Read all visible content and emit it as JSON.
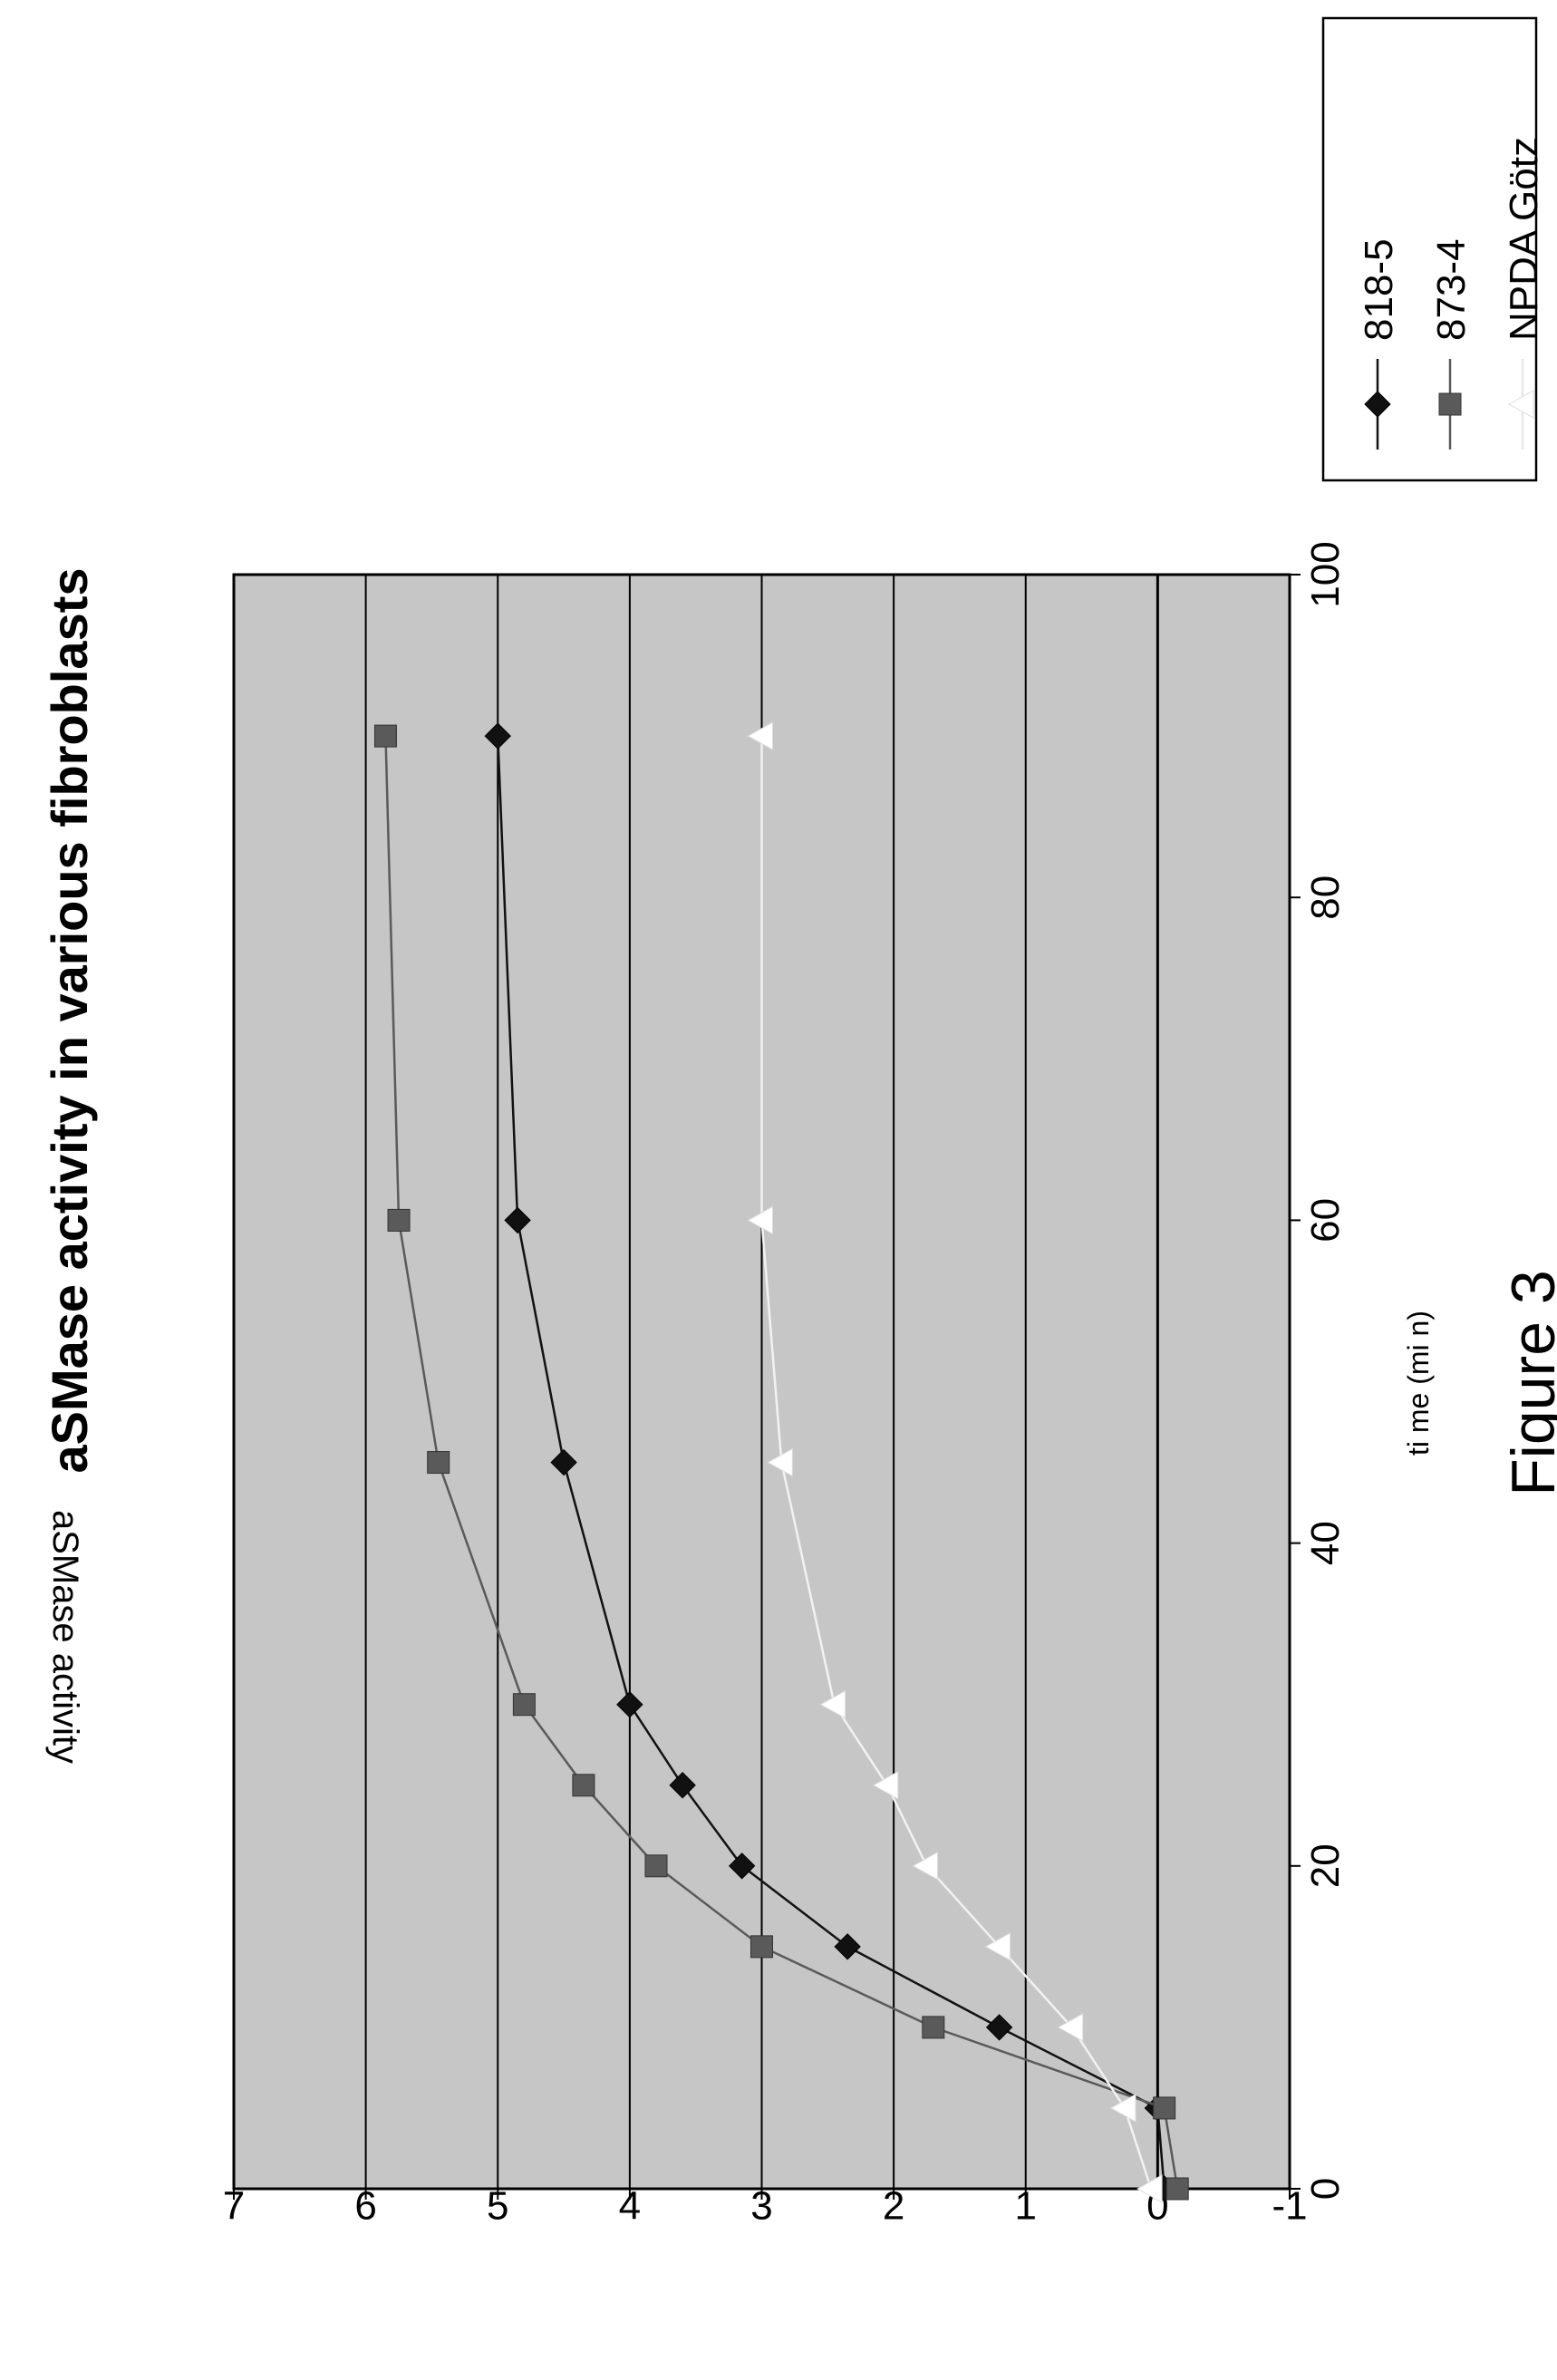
{
  "chart_data": {
    "type": "line",
    "title": "aSMase activity in various fibroblasts",
    "xlabel": "ti me (mi n)",
    "ylabel": "aSMase activity",
    "xlim": [
      0,
      100
    ],
    "ylim": [
      -1,
      7
    ],
    "x_ticks": [
      "0",
      "20",
      "40",
      "60",
      "80",
      "100"
    ],
    "y_ticks": [
      "-1",
      "0",
      "1",
      "2",
      "3",
      "4",
      "5",
      "6",
      "7"
    ],
    "grid": true,
    "legend_position": "right",
    "orientation": "rotated 90 degrees counter-clockwise",
    "series": [
      {
        "name": "818-5",
        "marker": "diamond",
        "color": "#111111",
        "x": [
          0,
          5,
          10,
          15,
          20,
          25,
          30,
          45,
          60,
          90
        ],
        "y": [
          -0.05,
          0,
          1.2,
          2.35,
          3.15,
          3.6,
          4.0,
          4.5,
          4.85,
          5.0
        ]
      },
      {
        "name": "873-4",
        "marker": "square",
        "color": "#5a5a5a",
        "x": [
          0,
          5,
          10,
          15,
          20,
          25,
          30,
          45,
          60,
          90
        ],
        "y": [
          -0.15,
          -0.05,
          1.7,
          3.0,
          3.8,
          4.35,
          4.8,
          5.45,
          5.75,
          5.85
        ]
      },
      {
        "name": "NPDA Götz",
        "marker": "triangle",
        "color": "#ffffff",
        "x": [
          0,
          5,
          10,
          15,
          20,
          25,
          30,
          45,
          60,
          90
        ],
        "y": [
          0.05,
          0.25,
          0.65,
          1.2,
          1.75,
          2.05,
          2.45,
          2.85,
          3.0,
          3.0
        ]
      }
    ]
  },
  "caption": "Figure 3"
}
